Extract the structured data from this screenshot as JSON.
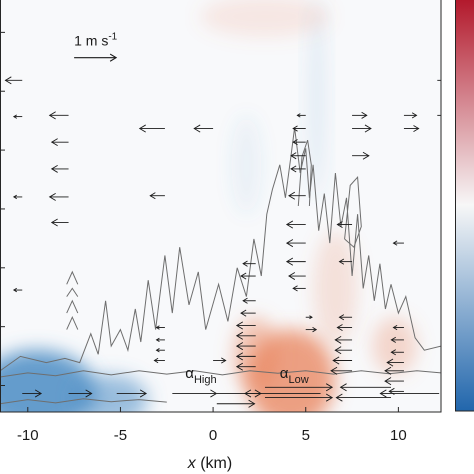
{
  "chart_data": {
    "type": "heatmap",
    "xlabel_var": "x",
    "xlabel_unit": " (km)",
    "xlim": [
      -11.5,
      12.3
    ],
    "ylim": [
      0,
      1
    ],
    "x_ticks": [
      -10,
      -5,
      0,
      5,
      10
    ],
    "x_tick_labels": [
      "-10",
      "-5",
      "0",
      "5",
      "10"
    ],
    "y_tick_count": 7,
    "colorbar": {
      "top_color": "#b2182b",
      "mid_color": "#f7f7f7",
      "bottom_color": "#2166ac"
    },
    "reference_vector": {
      "label": "1 m s",
      "exponent": "-1",
      "x": -7.5,
      "y": 0.86
    },
    "annotations": [
      {
        "greek": "α",
        "sub": "High",
        "x": -1.5,
        "y": 0.082
      },
      {
        "greek": "α",
        "sub": "Low",
        "x": 3.6,
        "y": 0.082
      }
    ],
    "warm_anomalies": [
      {
        "x": 4.2,
        "y": 0.08,
        "rx": 2.4,
        "ry": 0.12,
        "strength": 0.75
      },
      {
        "x": 2.3,
        "y": 0.14,
        "rx": 1.2,
        "ry": 0.09,
        "strength": 0.45
      },
      {
        "x": 9.8,
        "y": 0.16,
        "rx": 1.2,
        "ry": 0.07,
        "strength": 0.3
      },
      {
        "x": 6.6,
        "y": 0.3,
        "rx": 1.2,
        "ry": 0.14,
        "strength": 0.2
      },
      {
        "x": 2.8,
        "y": 0.96,
        "rx": 3.5,
        "ry": 0.05,
        "strength": 0.15
      }
    ],
    "cool_anomalies": [
      {
        "x": -9.5,
        "y": 0.05,
        "rx": 3.2,
        "ry": 0.1,
        "strength": 0.85
      },
      {
        "x": -5.5,
        "y": 0.03,
        "rx": 2.0,
        "ry": 0.06,
        "strength": 0.55
      },
      {
        "x": 5.6,
        "y": 0.76,
        "rx": 0.5,
        "ry": 0.24,
        "strength": 0.12
      },
      {
        "x": 1.8,
        "y": 0.6,
        "rx": 0.8,
        "ry": 0.12,
        "strength": 0.08
      }
    ],
    "wind_vectors": [
      {
        "x": -10.3,
        "y": 0.805,
        "u": -0.4
      },
      {
        "x": -7.8,
        "y": 0.72,
        "u": -0.45
      },
      {
        "x": -7.8,
        "y": 0.655,
        "u": -0.4
      },
      {
        "x": -7.8,
        "y": 0.59,
        "u": -0.4
      },
      {
        "x": -7.8,
        "y": 0.522,
        "u": -0.45
      },
      {
        "x": -7.8,
        "y": 0.46,
        "u": -0.4
      },
      {
        "x": -10.3,
        "y": 0.717,
        "u": -0.2
      },
      {
        "x": -10.3,
        "y": 0.522,
        "u": -0.2
      },
      {
        "x": -10.3,
        "y": 0.296,
        "u": -0.2
      },
      {
        "x": -2.6,
        "y": 0.688,
        "u": -0.6
      },
      {
        "x": -2.6,
        "y": 0.525,
        "u": -0.35
      },
      {
        "x": 0.0,
        "y": 0.688,
        "u": -0.45
      },
      {
        "x": 5.0,
        "y": 0.72,
        "u": -0.2
      },
      {
        "x": 5.0,
        "y": 0.688,
        "u": -0.3
      },
      {
        "x": 5.0,
        "y": 0.655,
        "u": -0.3
      },
      {
        "x": 5.0,
        "y": 0.622,
        "u": -0.35
      },
      {
        "x": 5.0,
        "y": 0.59,
        "u": -0.35
      },
      {
        "x": 7.5,
        "y": 0.72,
        "u": 0.35
      },
      {
        "x": 7.5,
        "y": 0.688,
        "u": 0.45
      },
      {
        "x": 7.5,
        "y": 0.622,
        "u": 0.4
      },
      {
        "x": 10.3,
        "y": 0.72,
        "u": 0.3
      },
      {
        "x": 10.3,
        "y": 0.688,
        "u": 0.35
      },
      {
        "x": 12.1,
        "y": 0.805,
        "u": 0.2
      },
      {
        "x": 12.1,
        "y": 0.72,
        "u": 0.2
      },
      {
        "x": 5.0,
        "y": 0.525,
        "u": -0.4
      },
      {
        "x": 5.0,
        "y": 0.455,
        "u": -0.45
      },
      {
        "x": 5.0,
        "y": 0.41,
        "u": -0.45
      },
      {
        "x": 5.0,
        "y": 0.365,
        "u": -0.45
      },
      {
        "x": 5.0,
        "y": 0.33,
        "u": -0.4
      },
      {
        "x": 5.0,
        "y": 0.3,
        "u": -0.3
      },
      {
        "x": 7.5,
        "y": 0.455,
        "u": -0.35
      },
      {
        "x": 7.5,
        "y": 0.365,
        "u": -0.3
      },
      {
        "x": 10.3,
        "y": 0.41,
        "u": -0.25
      },
      {
        "x": 2.3,
        "y": 0.36,
        "u": -0.3
      },
      {
        "x": 2.3,
        "y": 0.33,
        "u": -0.35
      },
      {
        "x": 2.3,
        "y": 0.27,
        "u": -0.3
      },
      {
        "x": 2.3,
        "y": 0.24,
        "u": -0.35
      },
      {
        "x": 2.3,
        "y": 0.21,
        "u": -0.45
      },
      {
        "x": 2.3,
        "y": 0.185,
        "u": -0.45
      },
      {
        "x": 2.3,
        "y": 0.16,
        "u": -0.45
      },
      {
        "x": 2.3,
        "y": 0.135,
        "u": -0.45
      },
      {
        "x": 2.3,
        "y": 0.11,
        "u": -0.45
      },
      {
        "x": 5.0,
        "y": 0.23,
        "u": 0.15
      },
      {
        "x": 5.0,
        "y": 0.2,
        "u": 0.25
      },
      {
        "x": 7.5,
        "y": 0.23,
        "u": -0.3
      },
      {
        "x": 7.5,
        "y": 0.205,
        "u": -0.35
      },
      {
        "x": 7.5,
        "y": 0.175,
        "u": -0.4
      },
      {
        "x": 7.5,
        "y": 0.15,
        "u": -0.4
      },
      {
        "x": 7.5,
        "y": 0.125,
        "u": -0.45
      },
      {
        "x": 7.5,
        "y": 0.1,
        "u": -0.5
      },
      {
        "x": 10.3,
        "y": 0.205,
        "u": -0.25
      },
      {
        "x": 10.3,
        "y": 0.175,
        "u": -0.3
      },
      {
        "x": 10.3,
        "y": 0.145,
        "u": -0.3
      },
      {
        "x": 10.3,
        "y": 0.12,
        "u": -0.4
      },
      {
        "x": 10.3,
        "y": 0.1,
        "u": -0.45
      },
      {
        "x": 10.3,
        "y": 0.075,
        "u": -0.45
      },
      {
        "x": 10.3,
        "y": 0.05,
        "u": -0.35
      },
      {
        "x": -2.6,
        "y": 0.205,
        "u": -0.2
      },
      {
        "x": -2.6,
        "y": 0.175,
        "u": -0.2
      },
      {
        "x": -2.6,
        "y": 0.15,
        "u": -0.2
      },
      {
        "x": -2.6,
        "y": 0.125,
        "u": -0.25
      },
      {
        "x": 0.0,
        "y": 0.125,
        "u": 0.3
      },
      {
        "x": -10.3,
        "y": 0.045,
        "u": 0.45
      },
      {
        "x": -7.8,
        "y": 0.045,
        "u": 0.55
      },
      {
        "x": -5.2,
        "y": 0.045,
        "u": 0.7
      },
      {
        "x": -2.2,
        "y": 0.045,
        "u": 1.05
      },
      {
        "x": 0.2,
        "y": 0.045,
        "u": 1.05
      },
      {
        "x": 0.2,
        "y": 0.02,
        "u": 0.9
      },
      {
        "x": 2.8,
        "y": 0.06,
        "u": 1.6
      },
      {
        "x": 2.8,
        "y": 0.035,
        "u": 1.6
      },
      {
        "x": 5.8,
        "y": 0.045,
        "u": -1.8
      },
      {
        "x": 9.6,
        "y": 0.06,
        "u": -1.2
      },
      {
        "x": 9.6,
        "y": 0.035,
        "u": -1.3
      },
      {
        "x": 12.2,
        "y": 0.045,
        "u": -1.4
      }
    ],
    "cloud_contours": [
      [
        [
          -11.5,
          0.1
        ],
        [
          -10.4,
          0.135
        ],
        [
          -9.0,
          0.12
        ],
        [
          -8.0,
          0.13
        ],
        [
          -7.2,
          0.12
        ],
        [
          -6.6,
          0.19
        ],
        [
          -6.2,
          0.14
        ],
        [
          -5.8,
          0.27
        ],
        [
          -5.5,
          0.16
        ],
        [
          -5.0,
          0.2
        ],
        [
          -4.6,
          0.15
        ],
        [
          -4.2,
          0.25
        ],
        [
          -3.9,
          0.17
        ],
        [
          -3.5,
          0.32
        ],
        [
          -3.1,
          0.2
        ],
        [
          -2.6,
          0.38
        ],
        [
          -2.2,
          0.24
        ],
        [
          -1.8,
          0.4
        ],
        [
          -1.3,
          0.26
        ],
        [
          -0.8,
          0.34
        ],
        [
          -0.4,
          0.2
        ],
        [
          0.3,
          0.31
        ],
        [
          0.8,
          0.22
        ],
        [
          1.3,
          0.35
        ],
        [
          1.8,
          0.28
        ],
        [
          2.2,
          0.42
        ],
        [
          2.6,
          0.33
        ],
        [
          2.9,
          0.48
        ],
        [
          3.2,
          0.54
        ],
        [
          3.6,
          0.6
        ],
        [
          3.9,
          0.52
        ],
        [
          4.2,
          0.62
        ],
        [
          4.4,
          0.69
        ],
        [
          4.7,
          0.58
        ],
        [
          5.0,
          0.64
        ],
        [
          5.2,
          0.52
        ],
        [
          5.4,
          0.6
        ],
        [
          5.7,
          0.44
        ],
        [
          6.0,
          0.53
        ],
        [
          6.3,
          0.41
        ],
        [
          6.6,
          0.58
        ],
        [
          6.9,
          0.45
        ],
        [
          7.2,
          0.52
        ],
        [
          7.5,
          0.33
        ],
        [
          7.8,
          0.48
        ],
        [
          8.1,
          0.3
        ],
        [
          8.4,
          0.38
        ],
        [
          8.7,
          0.27
        ],
        [
          9.0,
          0.36
        ],
        [
          9.3,
          0.25
        ],
        [
          9.6,
          0.31
        ],
        [
          10.0,
          0.24
        ],
        [
          10.4,
          0.28
        ],
        [
          10.9,
          0.18
        ],
        [
          11.4,
          0.15
        ],
        [
          12.3,
          0.16
        ]
      ],
      [
        [
          -11.5,
          0.085
        ],
        [
          -10.0,
          0.095
        ],
        [
          -8.5,
          0.088
        ],
        [
          -7.0,
          0.1
        ],
        [
          -5.5,
          0.09
        ],
        [
          -4.0,
          0.1
        ],
        [
          -2.5,
          0.092
        ],
        [
          -1.0,
          0.1
        ],
        [
          0.5,
          0.09
        ],
        [
          2.0,
          0.1
        ],
        [
          3.5,
          0.094
        ],
        [
          5.0,
          0.1
        ],
        [
          6.5,
          0.092
        ],
        [
          8.0,
          0.1
        ],
        [
          9.5,
          0.093
        ],
        [
          11.0,
          0.1
        ],
        [
          12.3,
          0.095
        ]
      ],
      [
        [
          -11.5,
          0.02
        ],
        [
          -10.0,
          0.03
        ],
        [
          -8.5,
          0.022
        ],
        [
          -7.0,
          0.032
        ],
        [
          -5.5,
          0.025
        ],
        [
          -4.0,
          0.03
        ],
        [
          -2.5,
          0.024
        ]
      ],
      [
        [
          4.6,
          0.5
        ],
        [
          4.8,
          0.62
        ],
        [
          5.1,
          0.66
        ],
        [
          5.3,
          0.6
        ],
        [
          5.2,
          0.5
        ]
      ],
      [
        [
          7.1,
          0.42
        ],
        [
          7.4,
          0.55
        ],
        [
          7.8,
          0.57
        ],
        [
          8.0,
          0.45
        ],
        [
          7.6,
          0.4
        ],
        [
          7.1,
          0.42
        ]
      ],
      [
        [
          -7.9,
          0.31
        ],
        [
          -7.6,
          0.34
        ],
        [
          -7.3,
          0.31
        ]
      ],
      [
        [
          -7.9,
          0.28
        ],
        [
          -7.6,
          0.3
        ],
        [
          -7.3,
          0.28
        ]
      ],
      [
        [
          -7.9,
          0.24
        ],
        [
          -7.6,
          0.27
        ],
        [
          -7.3,
          0.24
        ]
      ],
      [
        [
          -7.9,
          0.2
        ],
        [
          -7.6,
          0.23
        ],
        [
          -7.3,
          0.2
        ]
      ]
    ]
  }
}
